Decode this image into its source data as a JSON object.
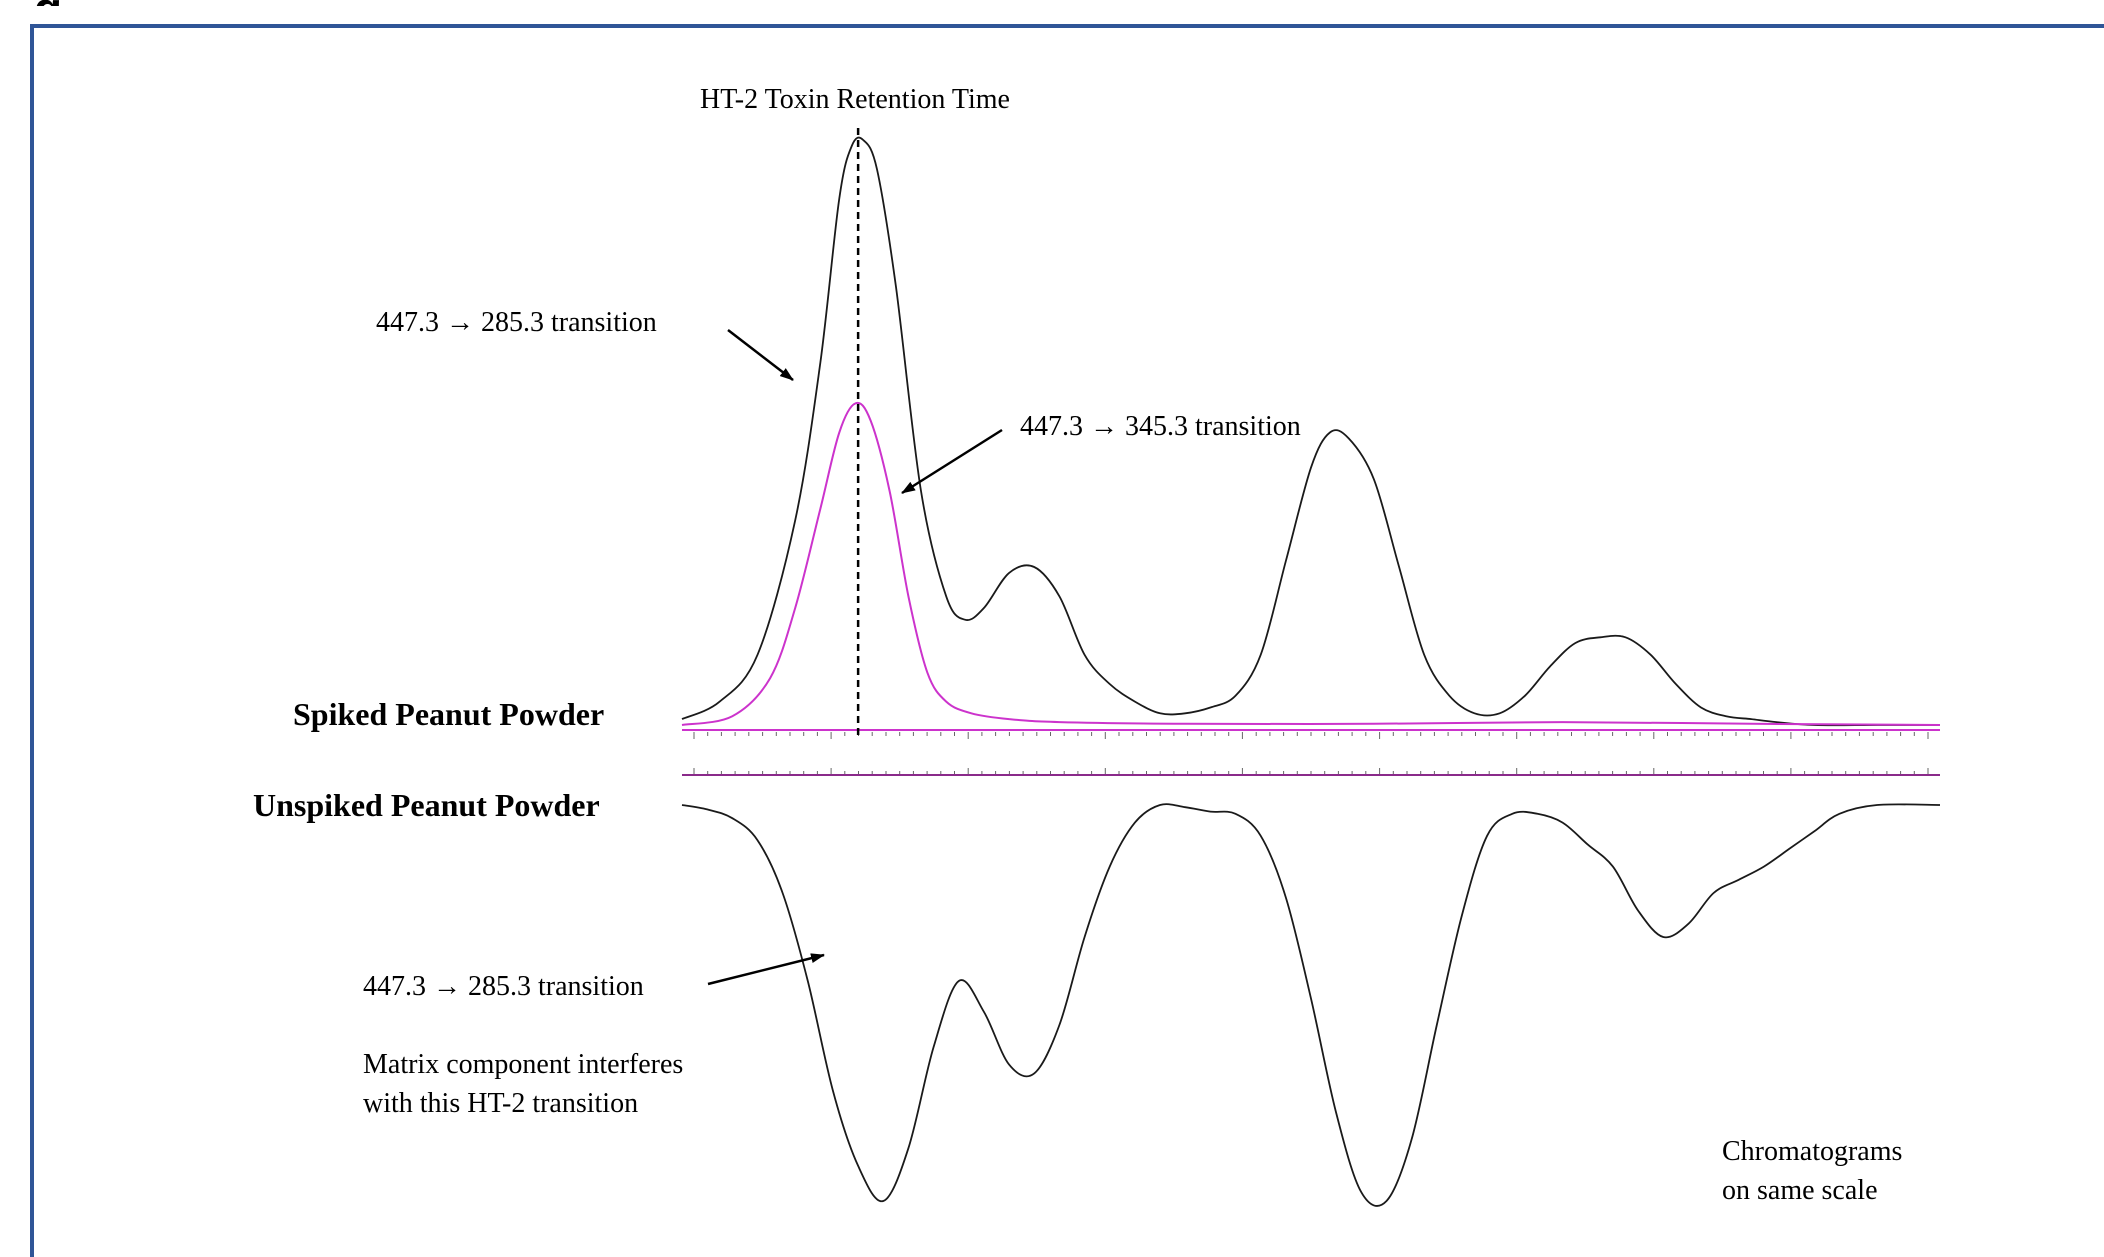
{
  "figure": {
    "partial_label": "g"
  },
  "chart_data": {
    "type": "line",
    "title": "",
    "annotations": {
      "retention_time": "HT-2 Toxin Retention Time",
      "spiked_label": "Spiked Peanut Powder",
      "unspiked_label": "Unspiked Peanut Powder",
      "arrow_285_top": "447.3 → 285.3 transition",
      "arrow_345": "447.3 → 345.3 transition",
      "arrow_285_bottom": "447.3 → 285.3 transition",
      "matrix_note_line1": "Matrix component interferes",
      "matrix_note_line2": "with this HT-2 transition",
      "scale_note_line1": "Chromatograms",
      "scale_note_line2": "on same scale"
    },
    "x_range": [
      0,
      100
    ],
    "retention_time_x": 14,
    "y_range": [
      0,
      100
    ],
    "panels": [
      {
        "name": "Spiked Peanut Powder",
        "direction": "up",
        "series": [
          {
            "name": "447.3 → 285.3 transition",
            "color": "#1a1a1a",
            "points": [
              [
                0,
                1
              ],
              [
                3,
                4
              ],
              [
                6,
                12
              ],
              [
                9,
                35
              ],
              [
                11,
                62
              ],
              [
                12.5,
                90
              ],
              [
                13.5,
                99
              ],
              [
                14.4,
                100
              ],
              [
                15.5,
                95
              ],
              [
                17,
                75
              ],
              [
                19,
                40
              ],
              [
                21,
                22
              ],
              [
                22.5,
                18
              ],
              [
                24,
                20
              ],
              [
                26,
                26
              ],
              [
                28,
                27
              ],
              [
                30,
                22
              ],
              [
                32,
                12
              ],
              [
                34,
                7
              ],
              [
                36,
                4
              ],
              [
                38,
                2
              ],
              [
                40,
                2
              ],
              [
                42,
                3
              ],
              [
                44,
                5
              ],
              [
                46,
                12
              ],
              [
                48,
                28
              ],
              [
                50,
                44
              ],
              [
                51.5,
                50
              ],
              [
                53,
                49
              ],
              [
                55,
                42
              ],
              [
                57,
                27
              ],
              [
                59,
                12
              ],
              [
                61,
                5
              ],
              [
                63,
                2
              ],
              [
                65,
                2
              ],
              [
                67,
                5
              ],
              [
                69,
                10
              ],
              [
                71,
                14
              ],
              [
                73,
                15
              ],
              [
                75,
                15
              ],
              [
                77,
                12
              ],
              [
                79,
                7
              ],
              [
                81,
                3
              ],
              [
                83,
                1.5
              ],
              [
                85,
                1
              ],
              [
                87,
                0.5
              ],
              [
                90,
                0
              ],
              [
                95,
                0
              ],
              [
                100,
                0
              ]
            ]
          },
          {
            "name": "447.3 → 345.3 transition",
            "color": "#cc33cc",
            "points": [
              [
                0,
                0
              ],
              [
                4,
                1.5
              ],
              [
                7,
                8
              ],
              [
                9,
                20
              ],
              [
                11,
                37
              ],
              [
                12.5,
                50
              ],
              [
                13.8,
                55
              ],
              [
                15,
                52
              ],
              [
                16.5,
                40
              ],
              [
                18,
                22
              ],
              [
                19.5,
                9
              ],
              [
                21,
                4
              ],
              [
                23,
                2
              ],
              [
                26,
                1
              ],
              [
                30,
                0.5
              ],
              [
                40,
                0.2
              ],
              [
                55,
                0.2
              ],
              [
                70,
                0.5
              ],
              [
                85,
                0.2
              ],
              [
                100,
                0
              ]
            ]
          }
        ]
      },
      {
        "name": "Unspiked Peanut Powder",
        "direction": "down",
        "series": [
          {
            "name": "447.3 → 285.3 transition",
            "color": "#1a1a1a",
            "points": [
              [
                0,
                0
              ],
              [
                2,
                1
              ],
              [
                4,
                3
              ],
              [
                6,
                8
              ],
              [
                8,
                20
              ],
              [
                10,
                40
              ],
              [
                12,
                65
              ],
              [
                14,
                82
              ],
              [
                16,
                90
              ],
              [
                18,
                78
              ],
              [
                20,
                55
              ],
              [
                22,
                40
              ],
              [
                24,
                47
              ],
              [
                26,
                59
              ],
              [
                28,
                61
              ],
              [
                30,
                50
              ],
              [
                32,
                30
              ],
              [
                34,
                14
              ],
              [
                36,
                4
              ],
              [
                38,
                0
              ],
              [
                40,
                0.5
              ],
              [
                42,
                1.5
              ],
              [
                44,
                2
              ],
              [
                46,
                7
              ],
              [
                48,
                21
              ],
              [
                50,
                44
              ],
              [
                52,
                70
              ],
              [
                54,
                88
              ],
              [
                56,
                90
              ],
              [
                58,
                76
              ],
              [
                60,
                50
              ],
              [
                62,
                25
              ],
              [
                64,
                7
              ],
              [
                66,
                2
              ],
              [
                68,
                2
              ],
              [
                70,
                4
              ],
              [
                72,
                9
              ],
              [
                74,
                14
              ],
              [
                76,
                24
              ],
              [
                78,
                30
              ],
              [
                80,
                27
              ],
              [
                82,
                20
              ],
              [
                84,
                17
              ],
              [
                86,
                14
              ],
              [
                88,
                10
              ],
              [
                90,
                6
              ],
              [
                92,
                2
              ],
              [
                95,
                0
              ],
              [
                100,
                0
              ]
            ]
          }
        ]
      }
    ],
    "legend": "none",
    "grid": false
  }
}
